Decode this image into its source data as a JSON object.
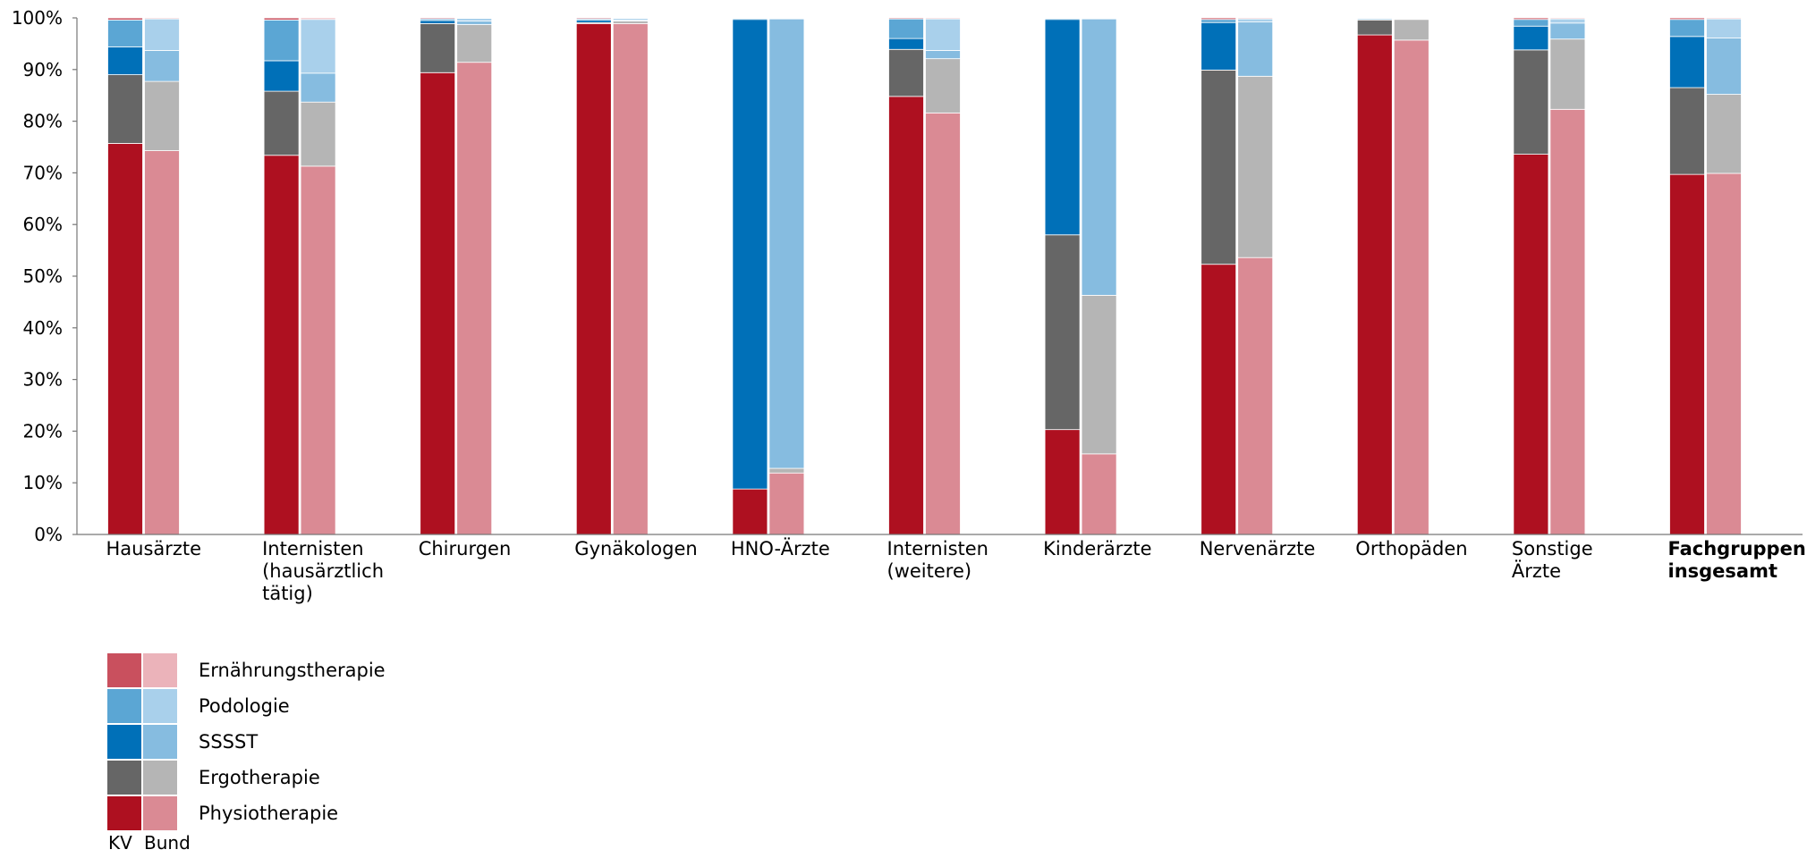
{
  "colors": {
    "kv": {
      "Physiotherapie": "#AE1020",
      "Ergotherapie": "#666666",
      "SSSST": "#0070B8",
      "Podologie": "#5BA6D4",
      "Ernährungstherapie": "#C9505E"
    },
    "bund": {
      "Physiotherapie": "#DA8A94",
      "Ergotherapie": "#B5B5B5",
      "SSSST": "#86BCE0",
      "Podologie": "#A9D0EB",
      "Ernährungstherapie": "#EBB3BA"
    },
    "axis": "#777777"
  },
  "chart_data": {
    "type": "bar",
    "stacked": true,
    "percent": true,
    "categories": [
      [
        "Hausärzte"
      ],
      [
        "Internisten",
        "(hausärztlich",
        "tätig)"
      ],
      [
        "Chirurgen"
      ],
      [
        "Gynäkologen"
      ],
      [
        "HNO-Ärzte"
      ],
      [
        "Internisten",
        "(weitere)"
      ],
      [
        "Kinderärzte"
      ],
      [
        "Nervenärzte"
      ],
      [
        "Orthopäden"
      ],
      [
        "Sonstige",
        "Ärzte"
      ],
      [
        "Fachgruppen",
        "insgesamt"
      ]
    ],
    "bold_category_index": 10,
    "series_order": [
      "Physiotherapie",
      "Ergotherapie",
      "SSSST",
      "Podologie",
      "Ernährungstherapie"
    ],
    "groups": [
      "KV",
      "Bund"
    ],
    "values": {
      "KV": {
        "Physiotherapie": [
          75.7,
          73.4,
          89.4,
          98.9,
          8.8,
          84.8,
          20.3,
          52.3,
          96.7,
          73.6,
          69.7
        ],
        "Ergotherapie": [
          13.3,
          12.4,
          9.5,
          0.2,
          0.0,
          9.1,
          37.7,
          37.6,
          2.9,
          20.2,
          16.8
        ],
        "SSSST": [
          5.4,
          5.9,
          0.6,
          0.5,
          90.9,
          2.1,
          41.7,
          9.2,
          0.1,
          4.6,
          9.9
        ],
        "Podologie": [
          5.2,
          7.9,
          0.3,
          0.2,
          0.2,
          3.8,
          0.2,
          0.6,
          0.2,
          1.3,
          3.3
        ],
        "Ernährungstherapie": [
          0.4,
          0.4,
          0.2,
          0.2,
          0.1,
          0.2,
          0.1,
          0.3,
          0.1,
          0.3,
          0.3
        ]
      },
      "Bund": {
        "Physiotherapie": [
          74.3,
          71.3,
          91.4,
          98.9,
          11.9,
          81.6,
          15.6,
          53.6,
          95.7,
          82.3,
          69.9
        ],
        "Ergotherapie": [
          13.4,
          12.4,
          7.3,
          0.5,
          0.9,
          10.5,
          30.7,
          35.1,
          4.0,
          13.6,
          15.3
        ],
        "SSSST": [
          6.0,
          5.6,
          0.7,
          0.2,
          87.0,
          1.6,
          53.5,
          10.5,
          0.1,
          3.1,
          10.9
        ],
        "Podologie": [
          6.1,
          10.4,
          0.5,
          0.3,
          0.1,
          6.1,
          0.1,
          0.6,
          0.1,
          0.8,
          3.7
        ],
        "Ernährungstherapie": [
          0.2,
          0.3,
          0.1,
          0.1,
          0.1,
          0.2,
          0.1,
          0.2,
          0.1,
          0.2,
          0.2
        ]
      }
    },
    "ylim": [
      0,
      100
    ],
    "yticks": [
      "0%",
      "10%",
      "20%",
      "30%",
      "40%",
      "50%",
      "60%",
      "70%",
      "80%",
      "90%",
      "100%"
    ],
    "legend": {
      "position": "bottom-left",
      "entries": [
        "Ernährungstherapie",
        "Podologie",
        "SSSST",
        "Ergotherapie",
        "Physiotherapie"
      ],
      "column_labels": [
        "KV",
        "Bund"
      ]
    }
  }
}
